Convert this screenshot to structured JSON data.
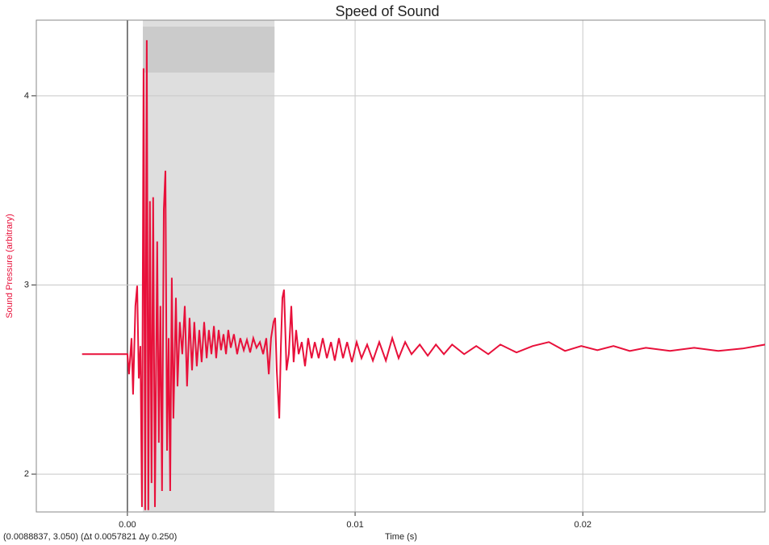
{
  "chart_data": {
    "type": "line",
    "title": "Speed of Sound",
    "xlabel": "Time (s)",
    "ylabel": "Sound Pressure (arbitrary)",
    "status": "(0.0088837, 3.050) (Δt 0.0057821 Δy 0.250)",
    "selection": [
      0.00068,
      0.00646
    ],
    "xlim": [
      -0.004,
      0.028
    ],
    "ylim": [
      1.8,
      4.4
    ],
    "xticks": [
      {
        "value": 0,
        "label": "0.00"
      },
      0.01,
      0.02
    ],
    "yticks": [
      2,
      3,
      4
    ],
    "grid": true,
    "series": [
      {
        "name": "Sound Pressure",
        "color": "#e8103a",
        "x": [
          -0.00199,
          -0.00099,
          0,
          7e-05,
          0.00018,
          0.00025,
          0.00035,
          0.00043,
          0.0005,
          0.00057,
          0.00064,
          0.00071,
          0.00078,
          0.00085,
          0.00092,
          0.00099,
          0.00106,
          0.00113,
          0.00121,
          0.00131,
          0.00138,
          0.00145,
          0.00152,
          0.0016,
          0.00167,
          0.00174,
          0.00181,
          0.00188,
          0.00195,
          0.00202,
          0.00213,
          0.0022,
          0.0023,
          0.00241,
          0.00252,
          0.00262,
          0.00273,
          0.00284,
          0.00294,
          0.00305,
          0.00316,
          0.00326,
          0.00337,
          0.00348,
          0.00358,
          0.00369,
          0.0038,
          0.0039,
          0.00401,
          0.00411,
          0.00422,
          0.00433,
          0.00443,
          0.00454,
          0.00468,
          0.00482,
          0.00496,
          0.00511,
          0.00525,
          0.00539,
          0.00553,
          0.00567,
          0.00582,
          0.00596,
          0.0061,
          0.00621,
          0.00631,
          0.00642,
          0.00649,
          0.00656,
          0.00667,
          0.00674,
          0.00681,
          0.00688,
          0.00699,
          0.00709,
          0.0072,
          0.0073,
          0.00741,
          0.00752,
          0.00766,
          0.0078,
          0.00794,
          0.00809,
          0.00823,
          0.0084,
          0.00858,
          0.00876,
          0.00894,
          0.00911,
          0.00929,
          0.00947,
          0.00965,
          0.00986,
          0.01007,
          0.01028,
          0.01053,
          0.01078,
          0.01106,
          0.01135,
          0.01163,
          0.01191,
          0.0122,
          0.01248,
          0.01284,
          0.01319,
          0.01355,
          0.0139,
          0.01426,
          0.01479,
          0.01532,
          0.01585,
          0.01638,
          0.01709,
          0.0178,
          0.01851,
          0.01922,
          0.01993,
          0.02064,
          0.02135,
          0.02206,
          0.02277,
          0.02383,
          0.02489,
          0.02596,
          0.02702,
          0.02801
        ],
        "values": [
          2.634,
          2.634,
          2.634,
          2.528,
          2.719,
          2.421,
          2.889,
          2.996,
          2.506,
          2.677,
          1.826,
          4.145,
          1.81,
          4.294,
          1.81,
          3.443,
          1.953,
          3.464,
          1.826,
          3.23,
          2.166,
          2.889,
          1.911,
          3.4,
          3.604,
          2.124,
          2.719,
          1.911,
          3.038,
          2.294,
          2.932,
          2.464,
          2.804,
          2.634,
          2.889,
          2.464,
          2.826,
          2.549,
          2.804,
          2.57,
          2.762,
          2.592,
          2.804,
          2.613,
          2.762,
          2.634,
          2.783,
          2.613,
          2.762,
          2.655,
          2.74,
          2.634,
          2.762,
          2.668,
          2.74,
          2.634,
          2.719,
          2.655,
          2.71,
          2.643,
          2.719,
          2.668,
          2.698,
          2.634,
          2.719,
          2.528,
          2.719,
          2.804,
          2.826,
          2.549,
          2.294,
          2.677,
          2.932,
          2.975,
          2.549,
          2.634,
          2.889,
          2.592,
          2.762,
          2.634,
          2.698,
          2.57,
          2.719,
          2.613,
          2.698,
          2.613,
          2.719,
          2.613,
          2.698,
          2.6,
          2.719,
          2.613,
          2.698,
          2.592,
          2.698,
          2.613,
          2.685,
          2.6,
          2.698,
          2.6,
          2.719,
          2.613,
          2.698,
          2.634,
          2.685,
          2.626,
          2.685,
          2.634,
          2.685,
          2.634,
          2.677,
          2.634,
          2.685,
          2.643,
          2.677,
          2.698,
          2.651,
          2.677,
          2.655,
          2.677,
          2.651,
          2.668,
          2.651,
          2.668,
          2.651,
          2.664,
          2.685
        ]
      }
    ]
  }
}
